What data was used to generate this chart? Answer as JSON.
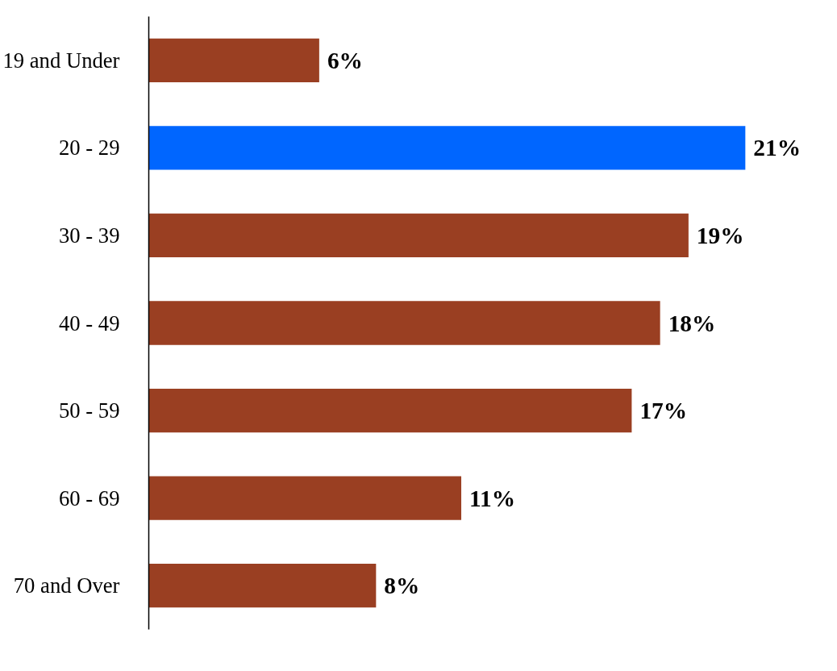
{
  "chart_data": {
    "type": "bar",
    "orientation": "horizontal",
    "categories": [
      "19 and Under",
      "20 - 29",
      "30 - 39",
      "40 - 49",
      "50 - 59",
      "60 - 69",
      "70 and Over"
    ],
    "values": [
      6,
      21,
      19,
      18,
      17,
      11,
      8
    ],
    "colors": [
      "#9a3f22",
      "#0066ff",
      "#9a3f22",
      "#9a3f22",
      "#9a3f22",
      "#9a3f22",
      "#9a3f22"
    ],
    "value_labels": [
      "6%",
      "21%",
      "19%",
      "18%",
      "17%",
      "11%",
      "8%"
    ],
    "grid": false
  }
}
